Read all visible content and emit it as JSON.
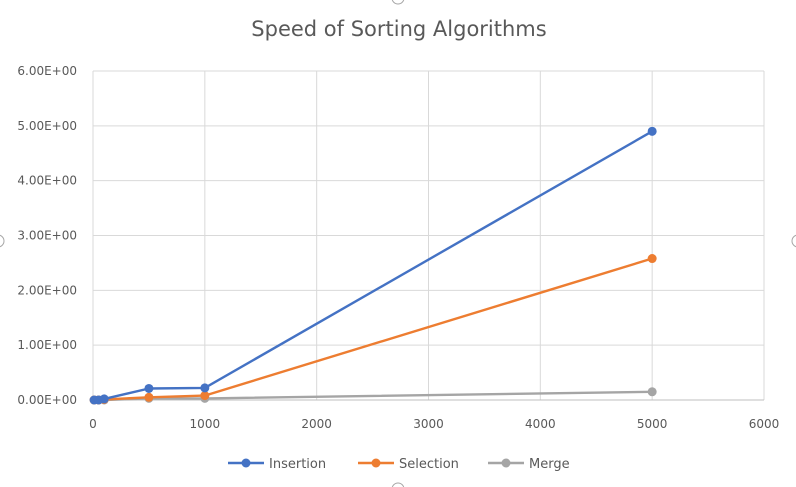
{
  "chart_data": {
    "type": "scatter",
    "title": "Speed of Sorting Algorithms",
    "xlabel": "",
    "ylabel": "",
    "xlim": [
      0,
      6000
    ],
    "ylim": [
      0,
      6
    ],
    "x_ticks": [
      "0",
      "1000",
      "2000",
      "3000",
      "4000",
      "5000",
      "6000"
    ],
    "y_ticks": [
      "0.00E+00",
      "1.00E+00",
      "2.00E+00",
      "3.00E+00",
      "4.00E+00",
      "5.00E+00",
      "6.00E+00"
    ],
    "x_tick_values": [
      0,
      1000,
      2000,
      3000,
      4000,
      5000,
      6000
    ],
    "y_tick_values": [
      0,
      1,
      2,
      3,
      4,
      5,
      6
    ],
    "grid": true,
    "legend_position": "bottom",
    "series": [
      {
        "name": "Insertion",
        "color": "#4472C4",
        "x": [
          10,
          50,
          100,
          500,
          1000,
          5000
        ],
        "y": [
          0.0,
          0.0,
          0.02,
          0.21,
          0.22,
          4.9
        ]
      },
      {
        "name": "Selection",
        "color": "#ED7D31",
        "x": [
          10,
          50,
          100,
          500,
          1000,
          5000
        ],
        "y": [
          0.0,
          0.0,
          0.01,
          0.05,
          0.08,
          2.58
        ]
      },
      {
        "name": "Merge",
        "color": "#A5A5A5",
        "x": [
          10,
          50,
          100,
          500,
          1000,
          5000
        ],
        "y": [
          0.0,
          0.0,
          0.0,
          0.03,
          0.03,
          0.15
        ]
      }
    ]
  }
}
